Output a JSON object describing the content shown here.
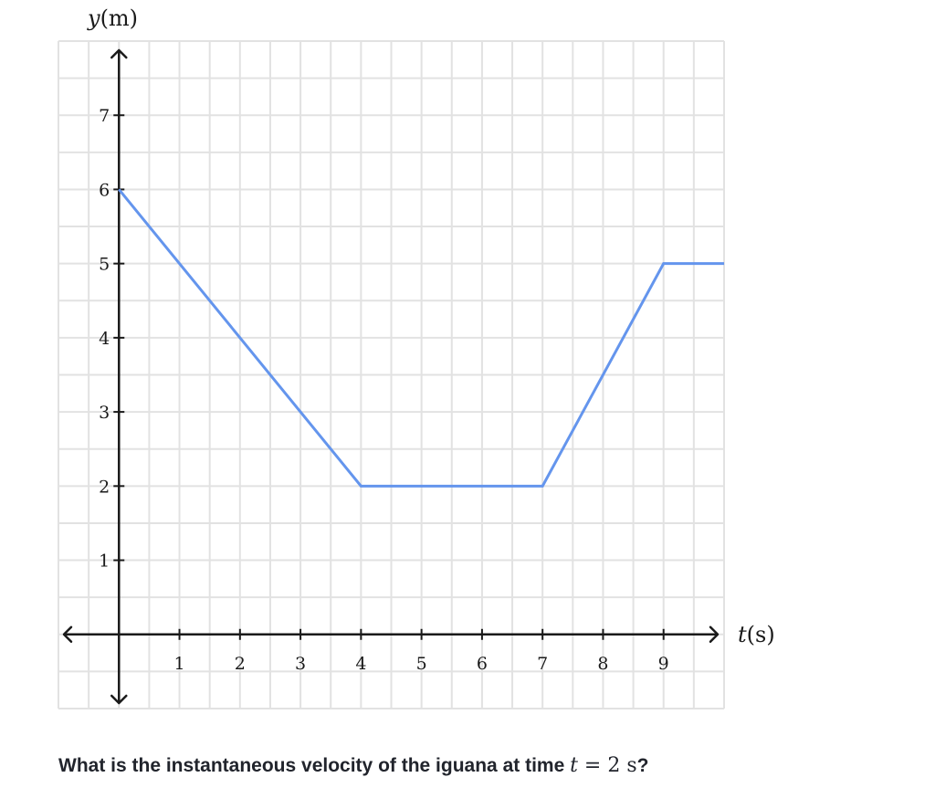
{
  "chart_data": {
    "type": "line",
    "x_axis_label": {
      "var": "t",
      "unit": "(s)"
    },
    "y_axis_label": {
      "var": "y",
      "unit": "(m)"
    },
    "x_ticks": [
      "1",
      "2",
      "3",
      "4",
      "5",
      "6",
      "7",
      "8",
      "9"
    ],
    "y_ticks": [
      "1",
      "2",
      "3",
      "4",
      "5",
      "6",
      "7"
    ],
    "xlim": [
      -1,
      10
    ],
    "ylim": [
      -1,
      8
    ],
    "grid": true,
    "grid_minor_step": 0.5,
    "series": [
      {
        "x": [
          0,
          4,
          7,
          9,
          10
        ],
        "y": [
          6,
          2,
          2,
          5,
          5
        ]
      }
    ]
  },
  "colors": {
    "series": "#6495ed",
    "grid": "#e2e2e2",
    "axis": "#1a1a1a"
  },
  "question": {
    "text_before": "What is the instantaneous velocity of the iguana at time ",
    "math_var": "t",
    "math_rest": " = 2 s",
    "text_after": "?"
  }
}
